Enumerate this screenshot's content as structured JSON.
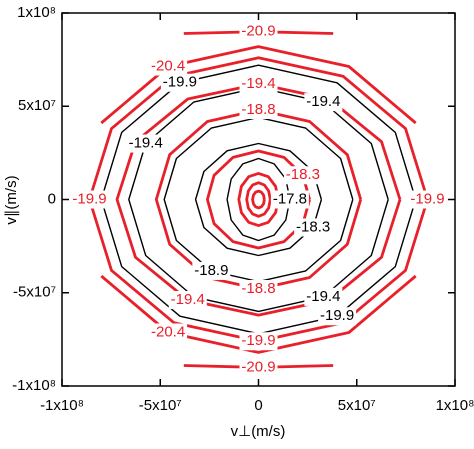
{
  "chart_data": {
    "type": "contour",
    "xlabel": "v⊥(m/s)",
    "ylabel": "v∥(m/s)",
    "xlim": [
      -100000000.0,
      100000000.0
    ],
    "ylim": [
      -100000000.0,
      100000000.0
    ],
    "xticks": [
      {
        "value": -100000000.0,
        "label": "-1x10⁸"
      },
      {
        "value": -50000000.0,
        "label": "-5x10⁷"
      },
      0,
      {
        "value": 50000000.0,
        "label": "5x10⁷"
      },
      {
        "value": 100000000.0,
        "label": "1x10⁸"
      }
    ],
    "yticks": [
      {
        "value": -100000000.0,
        "label": "-1x10⁸"
      },
      {
        "value": -50000000.0,
        "label": "-5x10⁷"
      },
      0,
      {
        "value": 50000000.0,
        "label": "5x10⁷"
      },
      {
        "value": 100000000.0,
        "label": "1x10⁸"
      }
    ],
    "contours": [
      {
        "level": -20.9,
        "color": "#e8202a",
        "x": [
          38000000.0,
          0,
          -38000000.0,
          null,
          -38000000.0,
          0,
          38000000.0
        ],
        "y": [
          89000000.0,
          90000000.0,
          89000000.0,
          null,
          -89000000.0,
          -90000000.0,
          -89000000.0
        ]
      },
      {
        "level": -20.4,
        "color": "#e8202a",
        "x": [
          null,
          80000000.0,
          46000000.0,
          0,
          -46000000.0,
          -80000000.0,
          null,
          -80000000.0,
          -46000000.0,
          0,
          46000000.0,
          80000000.0,
          null
        ],
        "y": [
          null,
          41000000.0,
          71300000.0,
          82000000.0,
          71300000.0,
          41000000.0,
          null,
          -41000000.0,
          -71300000.0,
          -82000000.0,
          -71300000.0,
          -41000000.0,
          null
        ]
      },
      {
        "level": -19.9,
        "color": "#e8202a",
        "x": [
          86000000.0,
          74800000.0,
          43000000.0,
          0,
          -43000000.0,
          -74800000.0,
          -86000000.0,
          -74800000.0,
          -43000000.0,
          0,
          43000000.0,
          74800000.0,
          86000000.0
        ],
        "y": [
          0,
          38000000.0,
          66100000.0,
          76000000.0,
          66100000.0,
          38000000.0,
          0,
          -38000000.0,
          -66100000.0,
          -76000000.0,
          -66100000.0,
          -38000000.0,
          0
        ]
      },
      {
        "level": -19.9,
        "color": "#000000",
        "x": [
          80000000.0,
          69600000.0,
          40000000.0,
          0,
          -40000000.0,
          -69600000.0,
          -80000000.0,
          -69600000.0,
          -40000000.0,
          0,
          40000000.0,
          69600000.0,
          80000000.0
        ],
        "y": [
          0,
          36000000.0,
          62600000.0,
          72000000.0,
          62600000.0,
          36000000.0,
          0,
          -36000000.0,
          -62600000.0,
          -72000000.0,
          -62600000.0,
          -36000000.0,
          0
        ]
      },
      {
        "level": -19.4,
        "color": "#e8202a",
        "x": [
          72000000.0,
          62600000.0,
          36000000.0,
          0,
          -36000000.0,
          -62600000.0,
          -72000000.0,
          -62600000.0,
          -36000000.0,
          0,
          36000000.0,
          62600000.0,
          72000000.0
        ],
        "y": [
          0,
          31000000.0,
          53900000.0,
          62000000.0,
          53900000.0,
          31000000.0,
          0,
          -31000000.0,
          -53900000.0,
          -62000000.0,
          -53900000.0,
          -31000000.0,
          0
        ]
      },
      {
        "level": -19.4,
        "color": "#000000",
        "x": [
          66000000.0,
          57400000.0,
          33000000.0,
          0,
          -33000000.0,
          -57400000.0,
          -66000000.0,
          -57400000.0,
          -33000000.0,
          0,
          33000000.0,
          57400000.0,
          66000000.0
        ],
        "y": [
          0,
          30000000.0,
          52200000.0,
          60000000.0,
          52200000.0,
          30000000.0,
          0,
          -30000000.0,
          -52200000.0,
          -60000000.0,
          -52200000.0,
          -30000000.0,
          0
        ]
      },
      {
        "level": -18.8,
        "color": "#e8202a",
        "x": [
          52000000.0,
          45200000.0,
          26000000.0,
          0,
          -26000000.0,
          -45200000.0,
          -52000000.0,
          -45200000.0,
          -26000000.0,
          0,
          26000000.0,
          45200000.0,
          52000000.0
        ],
        "y": [
          0,
          24000000.0,
          41800000.0,
          48000000.0,
          41800000.0,
          24000000.0,
          0,
          -24000000.0,
          -41800000.0,
          -48000000.0,
          -41800000.0,
          -24000000.0,
          0
        ]
      },
      {
        "level": -18.9,
        "color": "#000000",
        "x": [
          48000000.0,
          41800000.0,
          24000000.0,
          0,
          -24000000.0,
          -41800000.0,
          -48000000.0,
          -41800000.0,
          -24000000.0,
          0,
          24000000.0,
          41800000.0,
          48000000.0
        ],
        "y": [
          0,
          22000000.0,
          38300000.0,
          44000000.0,
          38300000.0,
          22000000.0,
          0,
          -22000000.0,
          -38300000.0,
          -44000000.0,
          -38300000.0,
          -22000000.0,
          0
        ]
      },
      {
        "level": -18.3,
        "color": "#000000",
        "x": [
          32000000.0,
          27800000.0,
          16000000.0,
          0,
          -16000000.0,
          -27800000.0,
          -32000000.0,
          -27800000.0,
          -16000000.0,
          0,
          16000000.0,
          27800000.0,
          32000000.0
        ],
        "y": [
          0,
          15000000.0,
          26100000.0,
          30000000.0,
          26100000.0,
          15000000.0,
          0,
          -15000000.0,
          -26100000.0,
          -30000000.0,
          -26100000.0,
          -15000000.0,
          0
        ]
      },
      {
        "level": -18.3,
        "color": "#e8202a",
        "x": [
          26000000.0,
          22600000.0,
          13000000.0,
          0,
          -13000000.0,
          -22600000.0,
          -26000000.0,
          -22600000.0,
          -13000000.0,
          0,
          13000000.0,
          22600000.0,
          26000000.0
        ],
        "y": [
          0,
          13000000.0,
          22600000.0,
          26000000.0,
          22600000.0,
          13000000.0,
          0,
          -13000000.0,
          -22600000.0,
          -26000000.0,
          -22600000.0,
          -13000000.0,
          0
        ]
      },
      {
        "level": -17.8,
        "color": "#000000",
        "x": [
          16000000.0,
          13900000.0,
          8000000.0,
          0,
          -8000000.0,
          -13900000.0,
          -16000000.0,
          -13900000.0,
          -8000000.0,
          0,
          8000000.0,
          13900000.0,
          16000000.0
        ],
        "y": [
          0,
          11000000.0,
          19100000.0,
          22000000.0,
          19100000.0,
          11000000.0,
          0,
          -11000000.0,
          -19100000.0,
          -22000000.0,
          -19100000.0,
          -11000000.0,
          0
        ]
      },
      {
        "color": "#e8202a",
        "x": [
          10000000.0,
          8700000.0,
          5000000.0,
          0,
          -5000000.0,
          -8700000.0,
          -10000000.0,
          -8700000.0,
          -5000000.0,
          0,
          5000000.0,
          8700000.0,
          10000000.0
        ],
        "y": [
          0,
          7000000.0,
          12200000.0,
          14000000.0,
          12200000.0,
          7000000.0,
          0,
          -7000000.0,
          -12200000.0,
          -14000000.0,
          -12200000.0,
          -7000000.0,
          0
        ]
      },
      {
        "color": "#e8202a",
        "x": [
          6000000.0,
          5200000.0,
          3000000.0,
          0,
          -3000000.0,
          -5200000.0,
          -6000000.0,
          -5200000.0,
          -3000000.0,
          0,
          3000000.0,
          5200000.0,
          6000000.0
        ],
        "y": [
          0,
          4500000.0,
          7800000.0,
          9000000.0,
          7800000.0,
          4500000.0,
          0,
          -4500000.0,
          -7800000.0,
          -9000000.0,
          -7800000.0,
          -4500000.0,
          0
        ]
      },
      {
        "color": "#e8202a",
        "x": [
          3000000.0,
          2600000.0,
          1500000.0,
          0,
          -1500000.0,
          -2600000.0,
          -3000000.0,
          -2600000.0,
          -1500000.0,
          0,
          1500000.0,
          2600000.0,
          3000000.0
        ],
        "y": [
          0,
          2300000.0,
          3900000.0,
          4500000.0,
          3900000.0,
          2300000.0,
          0,
          -2300000.0,
          -3900000.0,
          -4500000.0,
          -3900000.0,
          -2300000.0,
          0
        ]
      }
    ]
  }
}
